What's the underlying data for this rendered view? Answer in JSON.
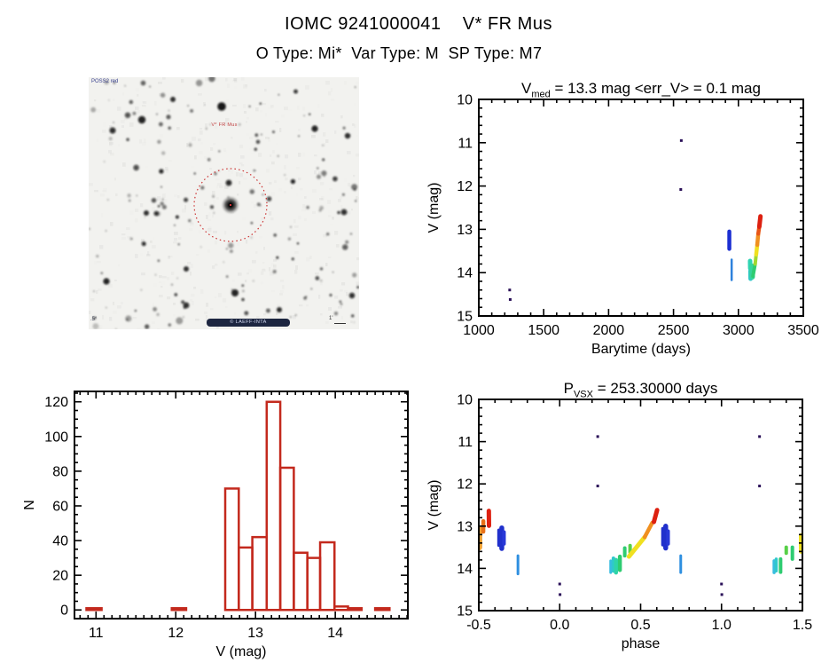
{
  "header": {
    "title": "IOMC 9241000041    V* FR Mus",
    "subtitle": "O Type: Mi*  Var Type: M  SP Type: M7"
  },
  "finder_chart": {
    "target_label": "V* FR Mus",
    "survey_label": "POSS2 red",
    "credit_label": "© LAEFF-INTA",
    "corner_label": ".5°",
    "scale_label": "1'",
    "circle_color": "#cc3333"
  },
  "chart_data": [
    {
      "id": "lightcurve",
      "type": "scatter",
      "title_prefix": "V",
      "title_sub": "med",
      "title_rest": " = 13.3 mag <err_V> = 0.1 mag",
      "xlabel": "Barytime (days)",
      "ylabel": "V (mag)",
      "xlim": [
        1000,
        3500
      ],
      "ylim": [
        10,
        15
      ],
      "xticks": [
        [
          1000,
          "1000"
        ],
        [
          1500,
          "1500"
        ],
        [
          2000,
          "2000"
        ],
        [
          2500,
          "2500"
        ],
        [
          3000,
          "3000"
        ],
        [
          3500,
          "3500"
        ]
      ],
      "yticks": [
        [
          10,
          "10"
        ],
        [
          11,
          "11"
        ],
        [
          12,
          "12"
        ],
        [
          13,
          "13"
        ],
        [
          14,
          "14"
        ],
        [
          15,
          "15"
        ]
      ],
      "xminor": 100,
      "yminor": 0.2,
      "points": [
        [
          1238,
          14.4,
          3,
          "#2a1058"
        ],
        [
          1242,
          14.62,
          3,
          "#2a1058"
        ],
        [
          2560,
          10.95,
          3,
          "#2a1058"
        ],
        [
          2556,
          12.08,
          3,
          "#2a1058"
        ]
      ],
      "segments": [
        [
          2930,
          13.05,
          2930,
          13.45,
          4.5,
          "#1c2fd2"
        ],
        [
          2948,
          13.7,
          2948,
          14.17,
          2.5,
          "#2e82dc"
        ],
        [
          3090,
          13.73,
          3091,
          13.9,
          5,
          "#2fd4b4"
        ],
        [
          3093,
          13.96,
          3094,
          14.14,
          5,
          "#30c8c8"
        ],
        [
          3105,
          13.85,
          3107,
          14.1,
          6,
          "#35d49c"
        ],
        [
          3112,
          14.08,
          3129,
          13.8,
          4,
          "#2ecc71"
        ],
        [
          3129,
          13.8,
          3137,
          13.58,
          4,
          "#a0d830"
        ],
        [
          3137,
          13.58,
          3145,
          13.36,
          4.5,
          "#f0e020"
        ],
        [
          3145,
          13.36,
          3153,
          13.1,
          4.5,
          "#f09020"
        ],
        [
          3153,
          13.1,
          3161,
          12.94,
          4.5,
          "#e85515"
        ],
        [
          3161,
          12.94,
          3170,
          12.7,
          5,
          "#dd2010"
        ]
      ]
    },
    {
      "id": "histogram",
      "type": "histogram",
      "xlabel": "V (mag)",
      "ylabel": "N",
      "xlim": [
        10.73,
        14.91
      ],
      "ylim": [
        126,
        -5
      ],
      "xticks": [
        [
          11,
          "11"
        ],
        [
          12,
          "12"
        ],
        [
          13,
          "13"
        ],
        [
          14,
          "14"
        ]
      ],
      "yticks": [
        [
          0,
          "0"
        ],
        [
          20,
          "20"
        ],
        [
          40,
          "40"
        ],
        [
          60,
          "60"
        ],
        [
          80,
          "80"
        ],
        [
          100,
          "100"
        ],
        [
          120,
          "120"
        ]
      ],
      "xminor": 0.1,
      "yminor": 5,
      "color": "#c3291d",
      "bins": [
        [
          10.88,
          11.07,
          1
        ],
        [
          11.95,
          12.13,
          1
        ],
        [
          12.62,
          12.79,
          70
        ],
        [
          12.79,
          12.96,
          36
        ],
        [
          12.96,
          13.14,
          42
        ],
        [
          13.14,
          13.31,
          120
        ],
        [
          13.31,
          13.48,
          82
        ],
        [
          13.48,
          13.65,
          33
        ],
        [
          13.65,
          13.81,
          30
        ],
        [
          13.81,
          13.99,
          39
        ],
        [
          13.99,
          14.16,
          2
        ],
        [
          14.16,
          14.33,
          1
        ],
        [
          14.5,
          14.68,
          1
        ]
      ]
    },
    {
      "id": "phase-curve",
      "type": "scatter",
      "title_prefix": "P",
      "title_sub": "VSX",
      "title_rest": " = 253.30000 days",
      "xlabel": "phase",
      "ylabel": "V (mag)",
      "xlim": [
        -0.5,
        1.5
      ],
      "ylim": [
        10,
        15
      ],
      "xticks": [
        [
          -0.5,
          "-0.5"
        ],
        [
          0,
          "0.0"
        ],
        [
          0.5,
          "0.5"
        ],
        [
          1,
          "1.0"
        ],
        [
          1.5,
          "1.5"
        ]
      ],
      "yticks": [
        [
          10,
          "10"
        ],
        [
          11,
          "11"
        ],
        [
          12,
          "12"
        ],
        [
          13,
          "13"
        ],
        [
          14,
          "14"
        ],
        [
          15,
          "15"
        ]
      ],
      "xminor": 0.1,
      "yminor": 0.2,
      "points": [
        [
          0.0,
          14.37,
          3,
          "#2a1058"
        ],
        [
          0.002,
          14.62,
          3,
          "#2a1058"
        ],
        [
          0.235,
          10.88,
          3,
          "#2a1058"
        ],
        [
          0.235,
          12.05,
          3,
          "#2a1058"
        ],
        [
          1.0,
          14.37,
          3,
          "#2a1058"
        ],
        [
          1.002,
          14.62,
          3,
          "#2a1058"
        ],
        [
          1.235,
          10.88,
          3,
          "#2a1058"
        ],
        [
          1.235,
          12.05,
          3,
          "#2a1058"
        ]
      ],
      "segments": [
        [
          -0.498,
          13.05,
          -0.498,
          13.5,
          7,
          "#f0a030"
        ],
        [
          -0.472,
          12.88,
          -0.472,
          13.13,
          4.5,
          "#e87018"
        ],
        [
          -0.438,
          12.64,
          -0.437,
          12.99,
          5,
          "#dd2010"
        ],
        [
          -0.375,
          13.1,
          -0.375,
          13.45,
          4,
          "#2030cc"
        ],
        [
          -0.358,
          13.04,
          -0.358,
          13.53,
          5.5,
          "#2030cc"
        ],
        [
          -0.344,
          13.14,
          -0.344,
          13.42,
          4,
          "#2838d8"
        ],
        [
          -0.258,
          13.7,
          -0.258,
          14.13,
          3,
          "#2e8fe0"
        ],
        [
          0.315,
          13.82,
          0.315,
          14.1,
          3,
          "#38bce0"
        ],
        [
          0.332,
          13.76,
          0.332,
          14.06,
          4,
          "#2fc8cc"
        ],
        [
          0.348,
          13.8,
          0.348,
          14.1,
          4.5,
          "#2fd4a8"
        ],
        [
          0.372,
          13.72,
          0.372,
          14.04,
          4.5,
          "#2ecc71"
        ],
        [
          0.402,
          13.52,
          0.402,
          13.7,
          4,
          "#2ecc71"
        ],
        [
          0.435,
          13.46,
          0.435,
          13.62,
          4,
          "#58d048"
        ],
        [
          0.428,
          13.72,
          0.525,
          13.26,
          5,
          "#f0e020"
        ],
        [
          0.525,
          13.26,
          0.572,
          12.92,
          4.5,
          "#f09020"
        ],
        [
          0.582,
          12.9,
          0.602,
          12.62,
          5,
          "#dd2010"
        ],
        [
          0.638,
          13.06,
          0.638,
          13.44,
          4,
          "#2030cc"
        ],
        [
          0.655,
          13.0,
          0.655,
          13.52,
          5.5,
          "#2030cc"
        ],
        [
          0.67,
          13.12,
          0.67,
          13.42,
          4,
          "#2838d8"
        ],
        [
          0.748,
          13.7,
          0.748,
          14.1,
          3,
          "#2e8fe0"
        ],
        [
          1.325,
          13.82,
          1.325,
          14.1,
          3.5,
          "#38bce0"
        ],
        [
          1.338,
          13.78,
          1.338,
          14.06,
          3.5,
          "#2fc8cc"
        ],
        [
          1.365,
          13.78,
          1.365,
          14.09,
          4,
          "#2ecc71"
        ],
        [
          1.4,
          13.5,
          1.4,
          13.64,
          4,
          "#58d048"
        ],
        [
          1.438,
          13.5,
          1.438,
          13.78,
          4,
          "#2ecc71"
        ],
        [
          1.492,
          13.22,
          1.492,
          13.6,
          5,
          "#f0e020"
        ]
      ]
    }
  ]
}
